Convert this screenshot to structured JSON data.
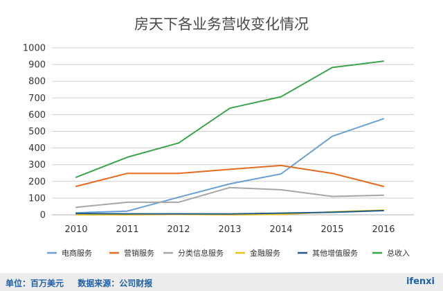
{
  "chart_data": {
    "type": "line",
    "title": "房天下各业务营收变化情况",
    "xlabel": "",
    "ylabel": "",
    "x": [
      "2010",
      "2011",
      "2012",
      "2013",
      "2014",
      "2015",
      "2016"
    ],
    "ylim": [
      0,
      1000
    ],
    "yticks": [
      0,
      100,
      200,
      300,
      400,
      500,
      600,
      700,
      800,
      900,
      1000
    ],
    "grid": true,
    "legend_position": "bottom",
    "series": [
      {
        "name": "电商服务",
        "color": "#6a9fd4",
        "values": [
          12,
          22,
          105,
          185,
          245,
          470,
          575
        ]
      },
      {
        "name": "营销服务",
        "color": "#e56b1f",
        "values": [
          170,
          248,
          248,
          272,
          295,
          248,
          170
        ]
      },
      {
        "name": "分类信息服务",
        "color": "#a6a6a6",
        "values": [
          45,
          75,
          75,
          163,
          150,
          110,
          117
        ]
      },
      {
        "name": "金融服务",
        "color": "#e8c21a",
        "values": [
          0,
          0,
          2,
          0,
          2,
          18,
          28
        ]
      },
      {
        "name": "其他增值服务",
        "color": "#1f5a8a",
        "values": [
          8,
          6,
          6,
          5,
          10,
          15,
          25
        ]
      },
      {
        "name": "总收入",
        "color": "#3aa44a",
        "values": [
          225,
          345,
          430,
          638,
          707,
          882,
          920
        ]
      }
    ]
  },
  "footer": {
    "unit": "单位：百万美元",
    "source": "数据来源：公司财报",
    "brand": "ifenxi"
  }
}
